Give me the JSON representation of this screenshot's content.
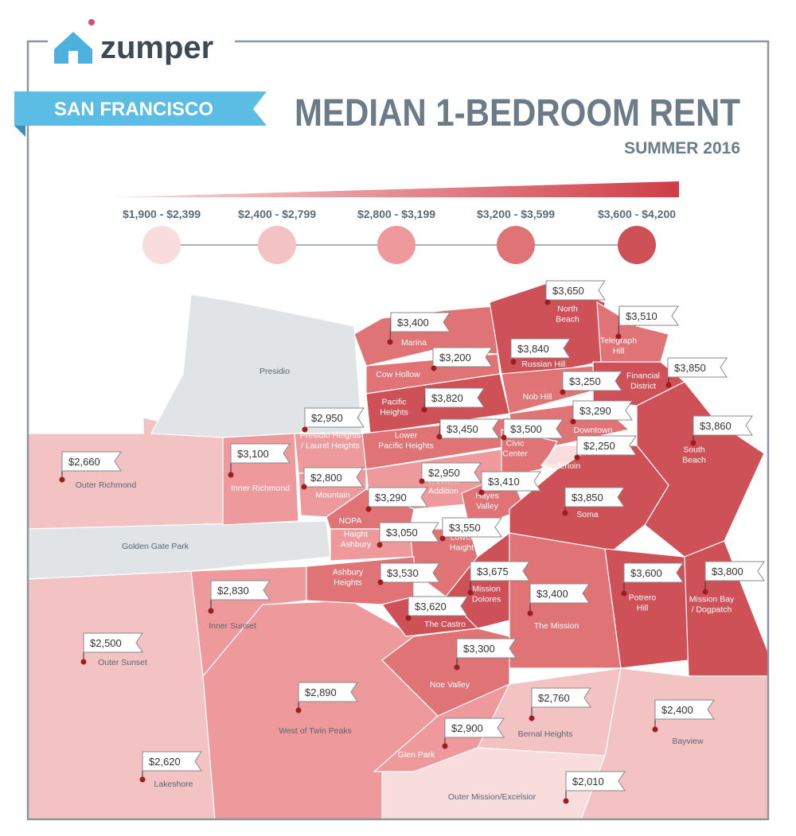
{
  "header": {
    "brand": "zumper",
    "city": "SAN FRANCISCO",
    "title": "MEDIAN 1-BEDROOM RENT",
    "subtitle": "SUMMER 2016"
  },
  "legend": [
    {
      "label": "$1,900 - $2,399",
      "color": "#f9dcdc"
    },
    {
      "label": "$2,400 - $2,799",
      "color": "#f3c3c3"
    },
    {
      "label": "$2,800 - $3,199",
      "color": "#ee9a9c"
    },
    {
      "label": "$3,200 - $3,599",
      "color": "#e07375"
    },
    {
      "label": "$3,600 - $4,200",
      "color": "#cf5158"
    }
  ],
  "areas": [
    {
      "name": "Presidio"
    },
    {
      "name": "Golden Gate Park"
    }
  ],
  "neighborhoods": [
    {
      "name": [
        "North",
        "Beach"
      ],
      "rent": "$3,650"
    },
    {
      "name": [
        "Telegraph",
        "Hill"
      ],
      "rent": "$3,510"
    },
    {
      "name": [
        "Marina"
      ],
      "rent": "$3,400"
    },
    {
      "name": [
        "Russian Hill"
      ],
      "rent": "$3,840"
    },
    {
      "name": [
        "Cow Hollow"
      ],
      "rent": "$3,200"
    },
    {
      "name": [
        "Financial",
        "District"
      ],
      "rent": "$3,850"
    },
    {
      "name": [
        "Nob Hill"
      ],
      "rent": "$3,250"
    },
    {
      "name": [
        "Pacific",
        "Heights"
      ],
      "rent": "$3,820"
    },
    {
      "name": [
        "Downtown"
      ],
      "rent": "$3,290"
    },
    {
      "name": [
        "Presidio Heights",
        "/ Laurel Heights"
      ],
      "rent": "$2,950"
    },
    {
      "name": [
        "Lower",
        "Pacific Heights"
      ],
      "rent": "$3,450"
    },
    {
      "name": [
        "Civic",
        "Center"
      ],
      "rent": "$3,500"
    },
    {
      "name": [
        "South",
        "Beach"
      ],
      "rent": "$3,860"
    },
    {
      "name": [
        "Tenderloin"
      ],
      "rent": "$2,250"
    },
    {
      "name": [
        "Outer Richmond"
      ],
      "rent": "$2,660"
    },
    {
      "name": [
        "Inner Richmond"
      ],
      "rent": "$3,100"
    },
    {
      "name": [
        "Western",
        "Addition"
      ],
      "rent": "$2,950"
    },
    {
      "name": [
        "Lone",
        "Mountain"
      ],
      "rent": "$2,800"
    },
    {
      "name": [
        "Hayes",
        "Valley"
      ],
      "rent": "$3,410"
    },
    {
      "name": [
        "NOPA"
      ],
      "rent": "$3,290"
    },
    {
      "name": [
        "Soma"
      ],
      "rent": "$3,850"
    },
    {
      "name": [
        "Haight",
        "Ashbury"
      ],
      "rent": "$3,050"
    },
    {
      "name": [
        "Lower",
        "Haight"
      ],
      "rent": "$3,550"
    },
    {
      "name": [
        "Ashbury",
        "Heights"
      ],
      "rent": "$3,530"
    },
    {
      "name": [
        "Mission",
        "Dolores"
      ],
      "rent": "$3,675"
    },
    {
      "name": [
        "Inner Sunset"
      ],
      "rent": "$2,830"
    },
    {
      "name": [
        "Potrero",
        "Hill"
      ],
      "rent": "$3,600"
    },
    {
      "name": [
        "Mission Bay",
        "/ Dogpatch"
      ],
      "rent": "$3,800"
    },
    {
      "name": [
        "The Mission"
      ],
      "rent": "$3,400"
    },
    {
      "name": [
        "The Castro"
      ],
      "rent": "$3,620"
    },
    {
      "name": [
        "Outer Sunset"
      ],
      "rent": "$2,500"
    },
    {
      "name": [
        "Noe Valley"
      ],
      "rent": "$3,300"
    },
    {
      "name": [
        "West of Twin Peaks"
      ],
      "rent": "$2,890"
    },
    {
      "name": [
        "Bernal Heights"
      ],
      "rent": "$2,760"
    },
    {
      "name": [
        "Bayview"
      ],
      "rent": "$2,400"
    },
    {
      "name": [
        "Glen Park"
      ],
      "rent": "$2,900"
    },
    {
      "name": [
        "Lakeshore"
      ],
      "rent": "$2,620"
    },
    {
      "name": [
        "Outer Mission/Excelsior"
      ],
      "rent": "$2,010"
    }
  ]
}
